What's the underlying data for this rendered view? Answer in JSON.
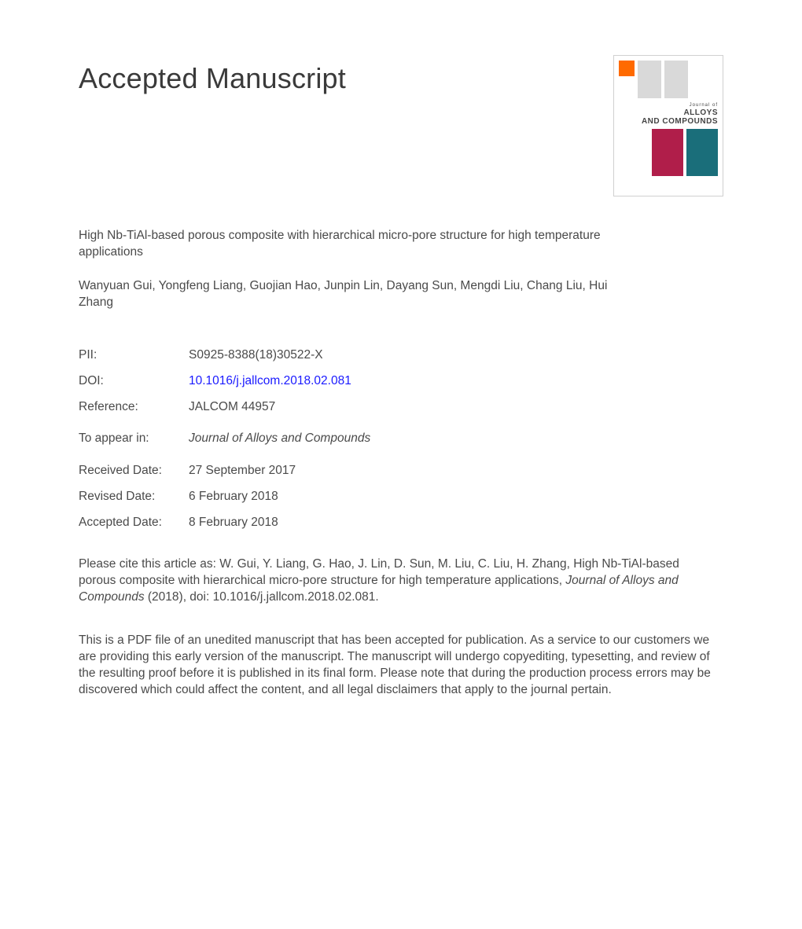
{
  "heading": "Accepted Manuscript",
  "journal_thumb": {
    "line1": "Journal of",
    "line2": "ALLOYS",
    "line3": "AND COMPOUNDS",
    "red": "#b01e4a",
    "teal": "#1a6e7a",
    "logo": "#ff6a00"
  },
  "title": "High Nb-TiAl-based porous composite with hierarchical micro-pore structure for high temperature applications",
  "authors": "Wanyuan Gui, Yongfeng Liang, Guojian Hao, Junpin Lin, Dayang Sun, Mengdi Liu, Chang Liu, Hui Zhang",
  "meta": {
    "pii_label": "PII:",
    "pii": "S0925-8388(18)30522-X",
    "doi_label": "DOI:",
    "doi": "10.1016/j.jallcom.2018.02.081",
    "ref_label": "Reference:",
    "ref": "JALCOM 44957",
    "appear_label": "To appear in:",
    "appear": "Journal of Alloys and Compounds",
    "received_label": "Received Date:",
    "received": "27 September 2017",
    "revised_label": "Revised Date:",
    "revised": "6 February 2018",
    "accepted_label": "Accepted Date:",
    "accepted": "8 February 2018"
  },
  "citation": {
    "pre": "Please cite this article as: W. Gui, Y. Liang, G. Hao, J. Lin, D. Sun, M. Liu, C. Liu, H. Zhang, High Nb-TiAl-based porous composite with hierarchical micro-pore structure for high temperature applications, ",
    "journal": "Journal of Alloys and Compounds",
    "post": " (2018), doi: 10.1016/j.jallcom.2018.02.081."
  },
  "disclaimer": "This is a PDF file of an unedited manuscript that has been accepted for publication. As a service to our customers we are providing this early version of the manuscript. The manuscript will undergo copyediting, typesetting, and review of the resulting proof before it is published in its final form. Please note that during the production process errors may be discovered which could affect the content, and all legal disclaimers that apply to the journal pertain."
}
